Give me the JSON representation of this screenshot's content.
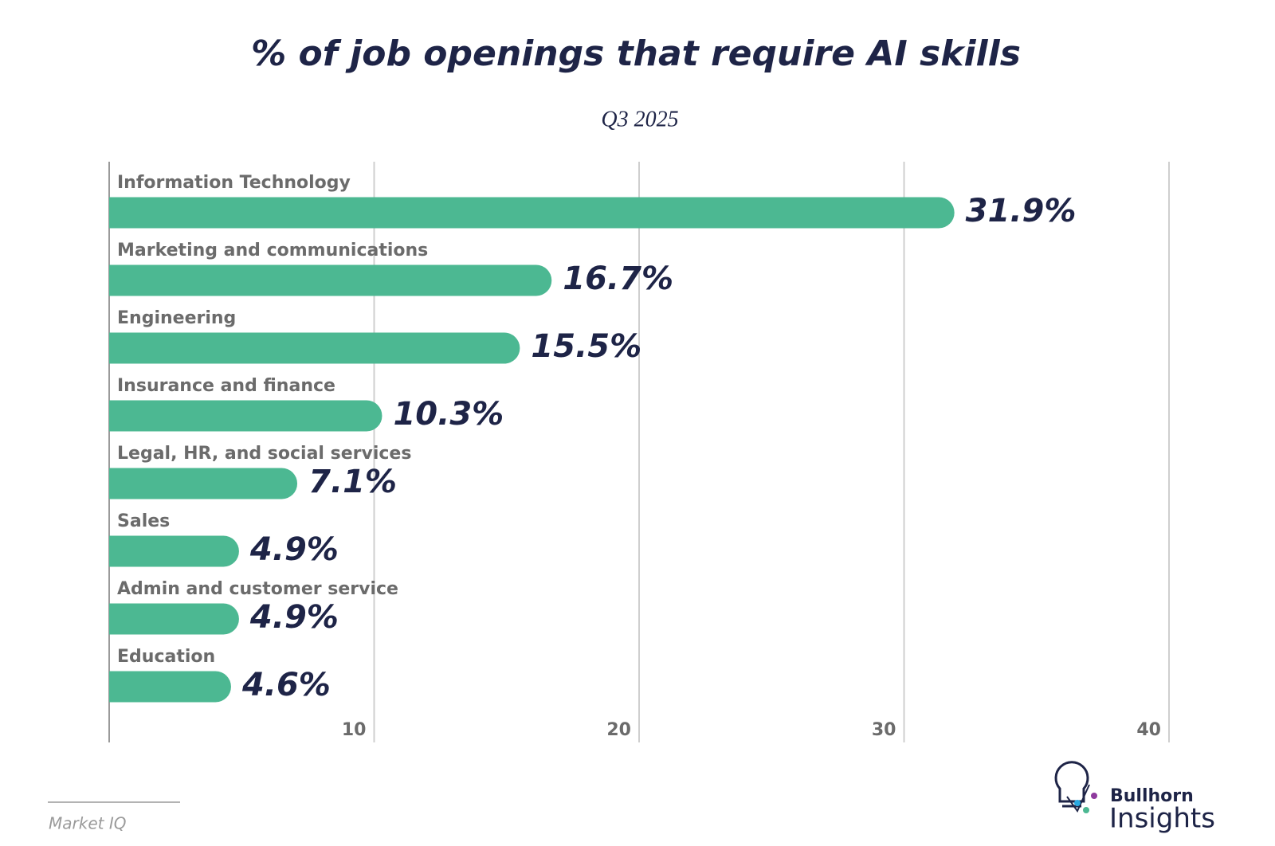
{
  "chart_data": {
    "type": "barh",
    "title": "% of job openings that require AI skills",
    "subtitle": "Q3 2025",
    "categories": [
      "Information Technology",
      "Marketing and communications",
      "Engineering",
      "Insurance and finance",
      "Legal, HR, and social services",
      "Sales",
      "Admin and customer service",
      "Education"
    ],
    "values": [
      31.9,
      16.7,
      15.5,
      10.3,
      7.1,
      4.9,
      4.9,
      4.6
    ],
    "value_labels": [
      "31.9%",
      "16.7%",
      "15.5%",
      "10.3%",
      "7.1%",
      "4.9%",
      "4.9%",
      "4.6%"
    ],
    "color": "#4cb892",
    "xlim": [
      0,
      40
    ],
    "xticks": [
      10,
      20,
      30,
      40
    ],
    "grid": true
  },
  "footer": {
    "source": "Market IQ",
    "brand": "Bullhorn",
    "product": "Insights"
  }
}
